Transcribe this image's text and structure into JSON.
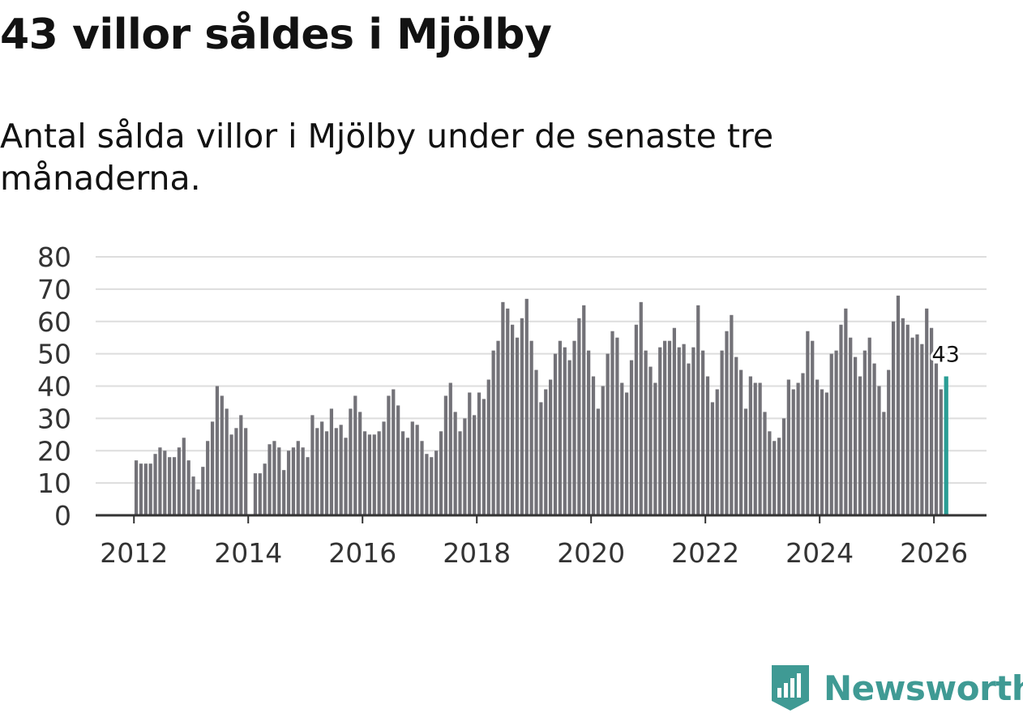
{
  "header": {
    "title": "43 villor såldes i Mjölby",
    "subtitle": "Antal sålda villor i Mjölby under de senaste tre månaderna."
  },
  "brand": {
    "name": "Newsworthy",
    "icon": "newsworthy-logo-icon",
    "color": "#3f9a94"
  },
  "colors": {
    "bar": "#737278",
    "highlight": "#2a9d95",
    "grid": "#dddddd",
    "axis": "#333333"
  },
  "chart_data": {
    "type": "bar",
    "title": "43 villor såldes i Mjölby",
    "subtitle": "Antal sålda villor i Mjölby under de senaste tre månaderna.",
    "xlabel": "",
    "ylabel": "",
    "ylim": [
      0,
      80
    ],
    "yticks": [
      0,
      10,
      20,
      30,
      40,
      50,
      60,
      70,
      80
    ],
    "xticks": [
      "2012",
      "2014",
      "2016",
      "2018",
      "2020",
      "2022",
      "2024",
      "2026"
    ],
    "xlim_years": [
      2011.33,
      2026.92
    ],
    "grid": true,
    "start": "2012-01",
    "frequency": "monthly",
    "values": [
      17,
      16,
      16,
      16,
      19,
      21,
      20,
      18,
      18,
      21,
      24,
      17,
      12,
      8,
      15,
      23,
      29,
      40,
      37,
      33,
      25,
      27,
      31,
      27,
      null,
      13,
      13,
      16,
      22,
      23,
      21,
      14,
      20,
      21,
      23,
      21,
      18,
      31,
      27,
      29,
      26,
      33,
      27,
      28,
      24,
      33,
      37,
      32,
      26,
      25,
      25,
      26,
      29,
      37,
      39,
      34,
      26,
      24,
      29,
      28,
      23,
      19,
      18,
      20,
      26,
      37,
      41,
      32,
      26,
      30,
      38,
      31,
      38,
      36,
      42,
      51,
      54,
      66,
      64,
      59,
      55,
      61,
      67,
      54,
      45,
      35,
      39,
      42,
      50,
      54,
      52,
      48,
      54,
      61,
      65,
      51,
      43,
      33,
      40,
      50,
      57,
      55,
      41,
      38,
      48,
      59,
      66,
      51,
      46,
      41,
      52,
      54,
      54,
      58,
      52,
      53,
      47,
      52,
      65,
      51,
      43,
      35,
      39,
      51,
      57,
      62,
      49,
      45,
      33,
      43,
      41,
      41,
      32,
      26,
      23,
      24,
      30,
      42,
      39,
      41,
      44,
      57,
      54,
      42,
      39,
      38,
      50,
      51,
      59,
      64,
      55,
      49,
      43,
      51,
      55,
      47,
      40,
      32,
      45,
      60,
      68,
      61,
      59,
      55,
      56,
      53,
      64,
      58,
      47,
      39,
      43
    ],
    "highlight": {
      "label": "2026-03",
      "value": 43,
      "text": "43"
    }
  }
}
